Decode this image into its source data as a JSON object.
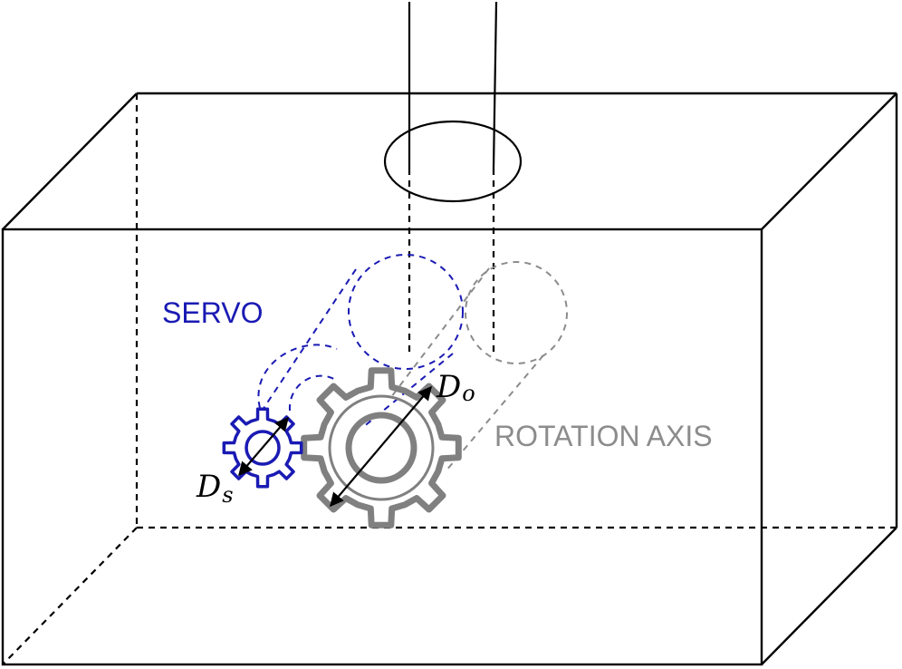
{
  "labels": {
    "servo": "SERVO",
    "rotation_axis": "ROTATION AXIS",
    "d_output_main": "D",
    "d_output_sub": "o",
    "d_servo_main": "D",
    "d_servo_sub": "s"
  },
  "colors": {
    "outline": "#000000",
    "servo": "#1a1ab4",
    "gear_output": "#808080",
    "axis": "#8c8c8c",
    "background": "#ffffff"
  }
}
